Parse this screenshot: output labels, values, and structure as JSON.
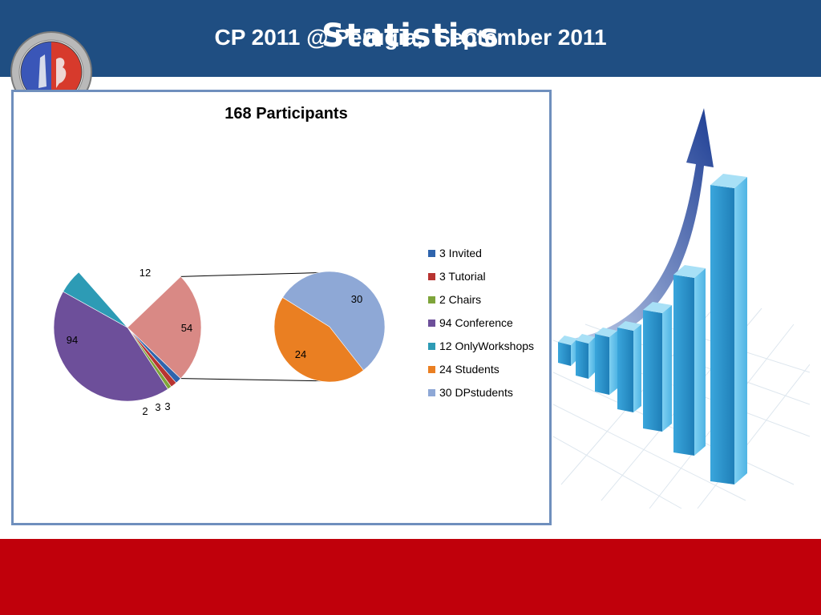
{
  "header": {
    "title": "Statistics",
    "bg": "#1f4e82"
  },
  "footer": {
    "text": "CP 2011 @ Perugia,  September 2011",
    "bg": "#c0000b"
  },
  "chart_data": {
    "type": "pie",
    "subtype": "pie-of-pie",
    "title": "168 Participants",
    "legend_position": "right",
    "main_slices": [
      {
        "label": "3",
        "value": 3,
        "color": "#2f64ad"
      },
      {
        "label": "3",
        "value": 3,
        "color": "#b83431"
      },
      {
        "label": "2",
        "value": 2,
        "color": "#7ea43a"
      },
      {
        "label": "94",
        "value": 94,
        "color": "#6d4f9a"
      },
      {
        "label": "12",
        "value": 12,
        "color": "#2d9bb5"
      },
      {
        "label": "54",
        "value": 54,
        "color": "#d98985"
      }
    ],
    "secondary_slices": [
      {
        "label": "24",
        "value": 24,
        "color": "#ea7f22"
      },
      {
        "label": "30",
        "value": 30,
        "color": "#8ea8d6"
      }
    ],
    "legend": [
      {
        "text": "3 Invited",
        "color": "#2f64ad"
      },
      {
        "text": "3 Tutorial",
        "color": "#b83431"
      },
      {
        "text": "2 Chairs",
        "color": "#7ea43a"
      },
      {
        "text": "94 Conference",
        "color": "#6d4f9a"
      },
      {
        "text": "12 OnlyWorkshops",
        "color": "#2d9bb5"
      },
      {
        "text": "24 Students",
        "color": "#ea7f22"
      },
      {
        "text": "30 DPstudents",
        "color": "#8ea8d6"
      }
    ]
  }
}
